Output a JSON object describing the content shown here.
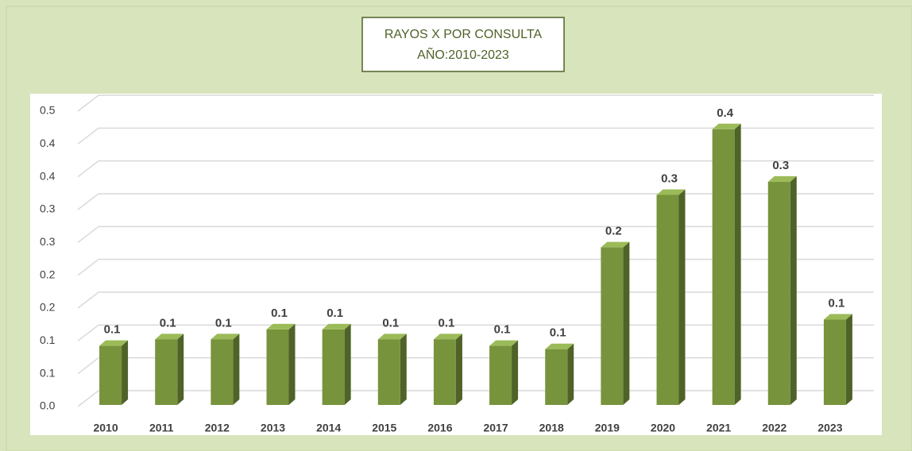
{
  "chart_data": {
    "type": "bar",
    "title": "RAYOS X POR CONSULTA",
    "subtitle": "AÑO:2010-2023",
    "categories": [
      "2010",
      "2011",
      "2012",
      "2013",
      "2014",
      "2015",
      "2016",
      "2017",
      "2018",
      "2019",
      "2020",
      "2021",
      "2022",
      "2023"
    ],
    "values": [
      0.09,
      0.1,
      0.1,
      0.115,
      0.115,
      0.1,
      0.1,
      0.09,
      0.085,
      0.24,
      0.32,
      0.42,
      0.34,
      0.13
    ],
    "value_labels": [
      "0.1",
      "0.1",
      "0.1",
      "0.1",
      "0.1",
      "0.1",
      "0.1",
      "0.1",
      "0.1",
      "0.2",
      "0.3",
      "0.4",
      "0.3",
      "0.1"
    ],
    "color": "#77933c",
    "ylim": [
      0,
      0.45
    ],
    "yticks": [
      {
        "value": 0,
        "label": "0.0"
      },
      {
        "value": 0.05,
        "label": "0.1"
      },
      0.1,
      {
        "value": 0.15,
        "label": "0.2"
      },
      0.2,
      {
        "value": 0.25,
        "label": "0.3"
      },
      0.3,
      {
        "value": 0.35,
        "label": "0.4"
      },
      0.4,
      {
        "value": 0.45,
        "label": "0.5"
      }
    ],
    "grid": true
  }
}
